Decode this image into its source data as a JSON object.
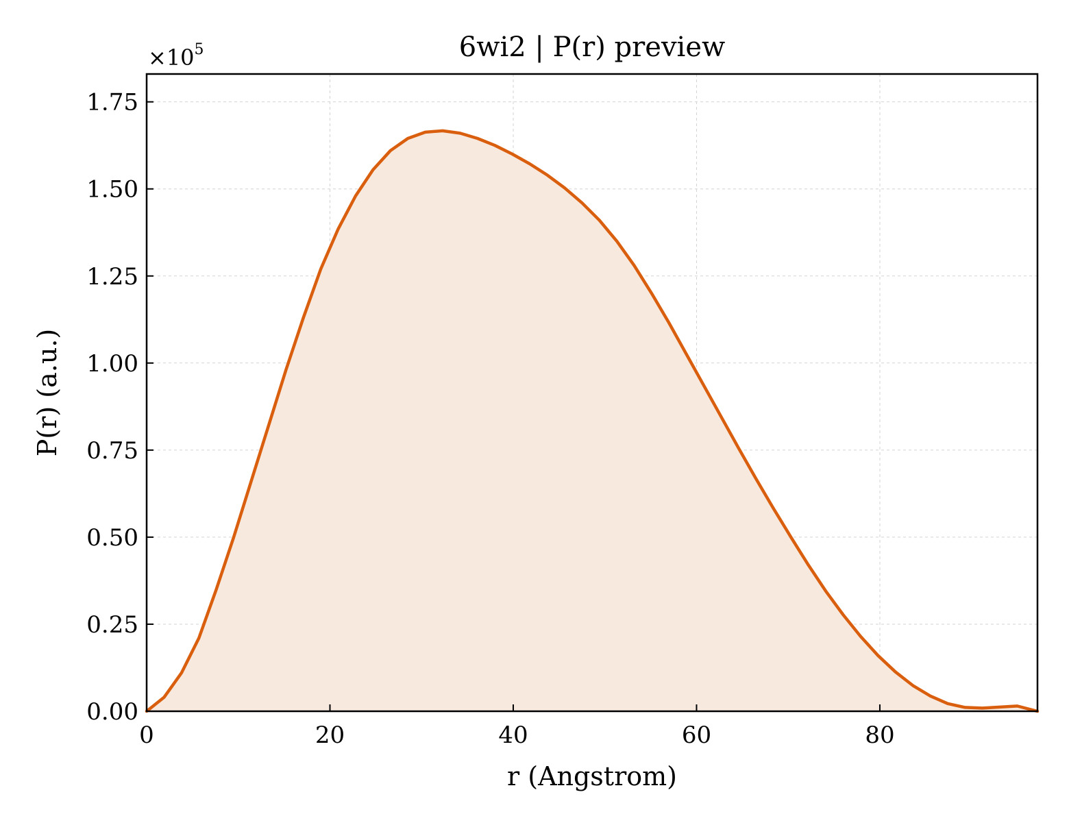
{
  "chart_data": {
    "type": "area",
    "title": "6wi2 | P(r) preview",
    "xlabel": "r (Angstrom)",
    "ylabel": "P(r) (a.u.)",
    "y_multiplier": "×10",
    "y_multiplier_exponent": "5",
    "xlim": [
      0,
      97.2
    ],
    "ylim": [
      0,
      1.83
    ],
    "x_ticks": [
      0,
      20,
      40,
      60,
      80
    ],
    "x_tick_labels": [
      "0",
      "20",
      "40",
      "60",
      "80"
    ],
    "y_ticks": [
      0,
      0.25,
      0.5,
      0.75,
      1.0,
      1.25,
      1.5,
      1.75
    ],
    "y_tick_labels": [
      "0.00",
      "0.25",
      "0.50",
      "0.75",
      "1.00",
      "1.25",
      "1.50",
      "1.75"
    ],
    "grid": true,
    "legend": "none",
    "colors": {
      "line": "#d95f0e",
      "fill": "#f8e9df",
      "grid": "#d3d3d3",
      "axes": "#000000"
    },
    "series": [
      {
        "x": [
          0,
          1.9,
          3.8,
          5.7,
          7.6,
          9.5,
          11.4,
          13.3,
          15.2,
          17.1,
          19.0,
          20.9,
          22.8,
          24.7,
          26.6,
          28.5,
          30.4,
          32.3,
          34.2,
          36.1,
          38.0,
          39.9,
          41.8,
          43.7,
          45.6,
          47.5,
          49.4,
          51.3,
          53.2,
          55.1,
          57.0,
          58.9,
          60.8,
          62.7,
          64.6,
          66.5,
          68.4,
          70.3,
          72.2,
          74.1,
          76.0,
          77.9,
          79.8,
          81.7,
          83.6,
          85.5,
          87.4,
          89.3,
          91.2,
          93.1,
          95.0,
          97.2
        ],
        "values": [
          0.0,
          0.04,
          0.11,
          0.21,
          0.35,
          0.5,
          0.66,
          0.82,
          0.98,
          1.13,
          1.27,
          1.385,
          1.48,
          1.555,
          1.61,
          1.645,
          1.663,
          1.667,
          1.66,
          1.645,
          1.625,
          1.6,
          1.572,
          1.54,
          1.503,
          1.46,
          1.41,
          1.35,
          1.28,
          1.2,
          1.115,
          1.025,
          0.935,
          0.845,
          0.755,
          0.667,
          0.582,
          0.5,
          0.42,
          0.345,
          0.277,
          0.215,
          0.16,
          0.113,
          0.074,
          0.044,
          0.022,
          0.011,
          0.009,
          0.012,
          0.015,
          0.0
        ]
      }
    ]
  }
}
